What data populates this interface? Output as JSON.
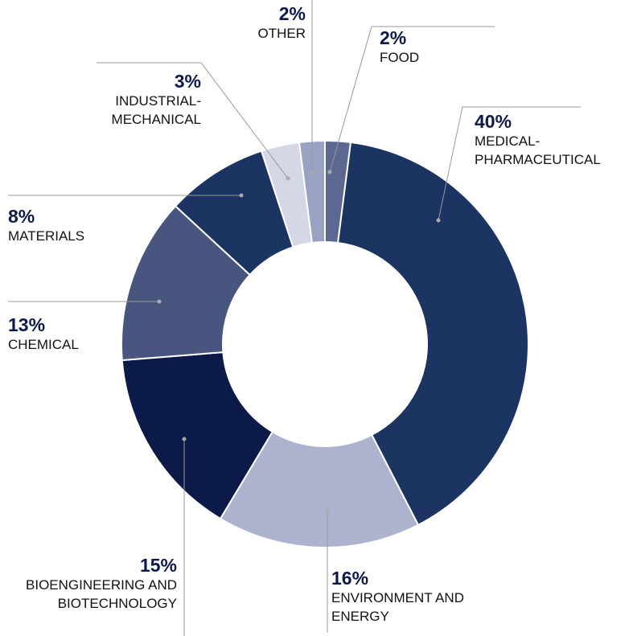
{
  "chart_data": {
    "type": "donut",
    "categories": [
      "FOOD",
      "MEDICAL-PHARMACEUTICAL",
      "ENVIRONMENT AND ENERGY",
      "BIOENGINEERING AND BIOTECHNOLOGY",
      "CHEMICAL",
      "MATERIALS",
      "INDUSTRIAL-MECHANICAL",
      "OTHER"
    ],
    "values": [
      2,
      40,
      16,
      15,
      13,
      8,
      3,
      2
    ],
    "value_labels": [
      "2%",
      "40%",
      "16%",
      "15%",
      "13%",
      "8%",
      "3%",
      "2%"
    ],
    "colors": [
      "#5c6890",
      "#1c3461",
      "#adb3cf",
      "#0c1a4a",
      "#48567f",
      "#1c3461",
      "#d4d7e6",
      "#9aa2c4"
    ]
  }
}
